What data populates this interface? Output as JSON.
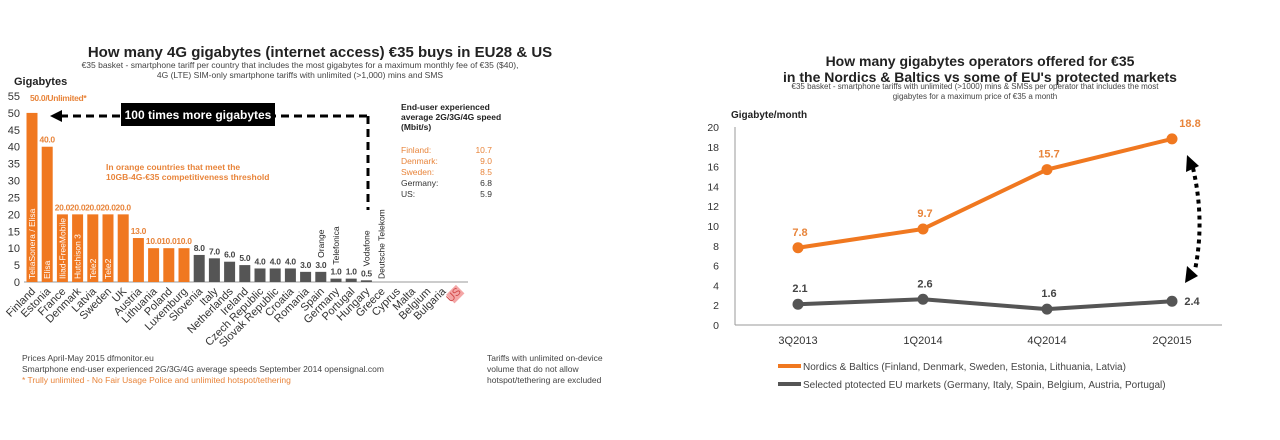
{
  "colors": {
    "orange": "#f07820",
    "orange_text": "#e8843a",
    "gray": "#555555",
    "axis": "#999999",
    "us_highlight": "#f4a6a6",
    "us_text": "#d24b4b"
  },
  "chart_data": [
    {
      "type": "bar",
      "title": "How many 4G gigabytes (internet access) €35 buys in EU28 & US",
      "subtitle": [
        "€35 basket - smartphone tariff per country that includes the most gigabytes for a maximum monthly fee of €35 ($40),",
        "4G (LTE)  SIM-only smartphone tariffs with unlimited (>1,000) mins and SMS"
      ],
      "ylabel": "Gigabytes",
      "ylim": [
        0,
        55
      ],
      "yticks": [
        0,
        5,
        10,
        15,
        20,
        25,
        30,
        35,
        40,
        45,
        50,
        55
      ],
      "categories": [
        "Finland",
        "Estonia",
        "France",
        "Denmark",
        "Latvia",
        "Sweden",
        "UK",
        "Austria",
        "Lithuania",
        "Poland",
        "Luxemburg",
        "Slovenia",
        "Italy",
        "Netherlands",
        "Ireland",
        "Czech Republic",
        "Slovak Republic",
        "Croatia",
        "Romania",
        "Spain",
        "Germany",
        "Portugal",
        "Hungary",
        "Greece",
        "Cyprus",
        "Malta",
        "Belgium",
        "Bulgaria",
        "US"
      ],
      "values": [
        50,
        40,
        20,
        20,
        20,
        20,
        20,
        13,
        10,
        10,
        10,
        8,
        7,
        6,
        5,
        4,
        4,
        4,
        3,
        3,
        1,
        1,
        0.5,
        0,
        0,
        0,
        0,
        0,
        0
      ],
      "data_labels": [
        "50.0/Unlimited*",
        "40.0",
        "20.0",
        "20.0",
        "20.0",
        "20.0",
        "20.0",
        "13.0",
        "10.0",
        "10.0",
        "10.0",
        "8.0",
        "7.0",
        "6.0",
        "5.0",
        "4.0",
        "4.0",
        "4.0",
        "3.0",
        "3.0",
        "1.0",
        "1.0",
        "0.5",
        "",
        "",
        "",
        "",
        "",
        ""
      ],
      "highlight": [
        "orange",
        "orange",
        "orange",
        "orange",
        "orange",
        "orange",
        "orange",
        "orange",
        "orange",
        "orange",
        "orange",
        "gray",
        "gray",
        "gray",
        "gray",
        "gray",
        "gray",
        "gray",
        "gray",
        "gray",
        "gray",
        "gray",
        "gray",
        "gray",
        "gray",
        "gray",
        "gray",
        "gray",
        "gray"
      ],
      "operator_labels_inside": {
        "Finland": "TeliaSonera / Elisa",
        "Estonia": "Elisa",
        "France": "Iliad-FreeMobile",
        "Denmark": "Hutchison 3",
        "Latvia": "Tele2",
        "Sweden": "Tele2"
      },
      "operator_labels_above": {
        "Spain": "Orange",
        "Germany": "Telefonica",
        "Hungary": "Vodafone",
        "Greece": "Deutsche Telekom"
      },
      "annotation_arrow": "100 times more gigabytes",
      "annotation_orange": [
        "In orange countries that meet the",
        "10GB-4G-€35 competitiveness threshold"
      ],
      "speed_table": {
        "title": [
          "End-user experienced",
          "average 2G/3G/4G speed",
          "(Mbit/s)"
        ],
        "rows": [
          {
            "country": "Finland:",
            "value": "10.7",
            "highlight": true
          },
          {
            "country": "Denmark:",
            "value": "9.0",
            "highlight": true
          },
          {
            "country": "Sweden:",
            "value": "8.5",
            "highlight": true
          },
          {
            "country": "Germany:",
            "value": "6.8",
            "highlight": false
          },
          {
            "country": "US:",
            "value": "5.9",
            "highlight": false
          }
        ]
      },
      "footnotes": [
        "Prices April-May 2015 dfmonitor.eu",
        "Smartphone end-user  experienced 2G/3G/4G average  speeds September 2014 opensignal.com",
        "* Trully unlimited - No Fair Usage Police and unlimited hotspot/tethering"
      ],
      "side_note": [
        "Tariffs with unlimited on-device",
        "volume that do not allow",
        "hotspot/tethering are excluded"
      ],
      "grid": false
    },
    {
      "type": "line",
      "title": [
        "How many gigabytes operators offered for €35",
        "in the Nordics & Baltics vs some of EU's protected markets"
      ],
      "subtitle": [
        "€35 basket - smartphone tariffs with unlimited (>1000)  mins & SMSs per operator that includes the most",
        "gigabytes for a maximum price of €35 a month"
      ],
      "ylabel": "Gigabyte/month",
      "ylim": [
        0,
        20
      ],
      "yticks": [
        0,
        2,
        4,
        6,
        8,
        10,
        12,
        14,
        16,
        18,
        20
      ],
      "categories": [
        "3Q2013",
        "1Q2014",
        "4Q2014",
        "2Q2015"
      ],
      "series": [
        {
          "name": "Nordics & Baltics (Finland, Denmark, Sweden, Estonia, Lithuania, Latvia)",
          "values": [
            7.8,
            9.7,
            15.7,
            18.8
          ],
          "labels": [
            "7.8",
            "9.7",
            "15.7",
            "18.8"
          ],
          "color": "#f07820"
        },
        {
          "name": "Selected ptotected EU markets (Germany, Italy, Spain, Belgium, Austria, Portugal)",
          "values": [
            2.1,
            2.6,
            1.6,
            2.4
          ],
          "labels": [
            "2.1",
            "2.6",
            "1.6",
            "2.4"
          ],
          "color": "#555555"
        }
      ],
      "legend_position": "bottom",
      "grid": false
    }
  ]
}
